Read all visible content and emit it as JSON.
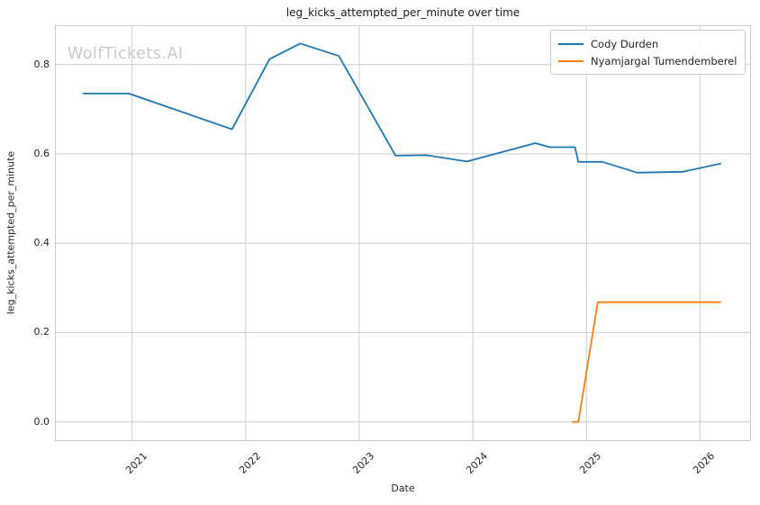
{
  "watermark": "WolfTickets.AI",
  "colors": {
    "series_blue": "#1f77b4",
    "series_orange": "#ff7f0e",
    "grid": "#cccccc",
    "spine": "#cccccc",
    "text": "#262626",
    "watermark": "#c9c9c9"
  },
  "chart_data": {
    "type": "line",
    "title": "leg_kicks_attempted_per_minute over time",
    "xlabel": "Date",
    "ylabel": "leg_kicks_attempted_per_minute",
    "xlim": [
      2020.32,
      2026.45
    ],
    "ylim": [
      -0.043,
      0.888
    ],
    "grid": true,
    "legend_position": "upper right",
    "x_ticks": [
      {
        "value": 2021,
        "label": "2021"
      },
      {
        "value": 2022,
        "label": "2022"
      },
      {
        "value": 2023,
        "label": "2023"
      },
      {
        "value": 2024,
        "label": "2024"
      },
      {
        "value": 2025,
        "label": "2025"
      },
      {
        "value": 2026,
        "label": "2026"
      }
    ],
    "y_ticks": [
      {
        "value": 0.0,
        "label": "0.0"
      },
      {
        "value": 0.2,
        "label": "0.2"
      },
      {
        "value": 0.4,
        "label": "0.4"
      },
      {
        "value": 0.6,
        "label": "0.6"
      },
      {
        "value": 0.8,
        "label": "0.8"
      }
    ],
    "series": [
      {
        "name": "Cody Durden",
        "color": "#1f77b4",
        "points": [
          [
            2020.57,
            0.735
          ],
          [
            2020.97,
            0.735
          ],
          [
            2021.88,
            0.655
          ],
          [
            2022.21,
            0.812
          ],
          [
            2022.48,
            0.847
          ],
          [
            2022.82,
            0.819
          ],
          [
            2023.32,
            0.596
          ],
          [
            2023.59,
            0.597
          ],
          [
            2023.95,
            0.583
          ],
          [
            2024.55,
            0.624
          ],
          [
            2024.68,
            0.615
          ],
          [
            2024.9,
            0.615
          ],
          [
            2024.93,
            0.582
          ],
          [
            2025.14,
            0.582
          ],
          [
            2025.45,
            0.558
          ],
          [
            2025.85,
            0.56
          ],
          [
            2026.18,
            0.578
          ]
        ]
      },
      {
        "name": "Nyamjargal Tumendemberel",
        "color": "#ff7f0e",
        "points": [
          [
            2024.88,
            0.0
          ],
          [
            2024.93,
            0.0
          ],
          [
            2025.1,
            0.268
          ],
          [
            2026.18,
            0.268
          ]
        ]
      }
    ]
  }
}
